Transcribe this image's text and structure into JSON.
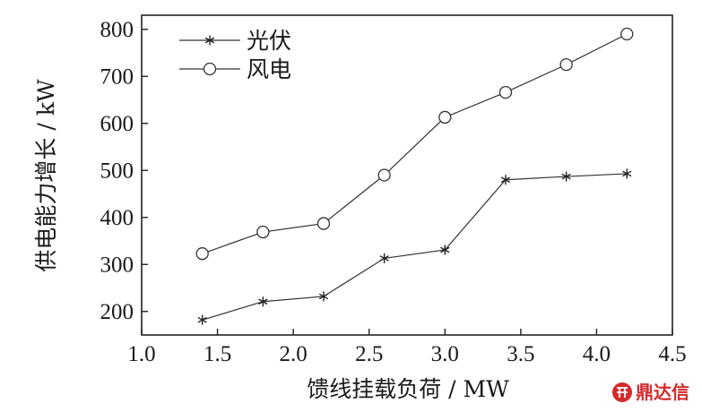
{
  "chart_data": {
    "type": "line",
    "title": "",
    "xlabel": "馈线挂载负荷 / MW",
    "ylabel": "供电能力增长 / kW",
    "xlim": [
      1.0,
      4.5
    ],
    "ylim": [
      150,
      830
    ],
    "xticks": [
      1.0,
      1.5,
      2.0,
      2.5,
      3.0,
      3.5,
      4.0,
      4.5
    ],
    "xtick_labels": [
      "1.0",
      "1.5",
      "2.0",
      "2.5",
      "3.0",
      "3.5",
      "4.0",
      "4.5"
    ],
    "yticks": [
      200,
      300,
      400,
      500,
      600,
      700,
      800
    ],
    "ytick_labels": [
      "200",
      "300",
      "400",
      "500",
      "600",
      "700",
      "800"
    ],
    "grid": false,
    "legend_position": "top-left",
    "series": [
      {
        "name": "光伏",
        "marker": "asterisk",
        "x": [
          1.4,
          1.8,
          2.2,
          2.6,
          3.0,
          3.4,
          3.8,
          4.2
        ],
        "values": [
          182,
          221,
          232,
          313,
          331,
          480,
          487,
          493
        ]
      },
      {
        "name": "风电",
        "marker": "circle",
        "x": [
          1.4,
          1.8,
          2.2,
          2.6,
          3.0,
          3.4,
          3.8,
          4.2
        ],
        "values": [
          323,
          369,
          387,
          490,
          613,
          666,
          725,
          790
        ]
      }
    ]
  },
  "watermark": {
    "text": "鼎达信",
    "color": "#d42a2a"
  }
}
